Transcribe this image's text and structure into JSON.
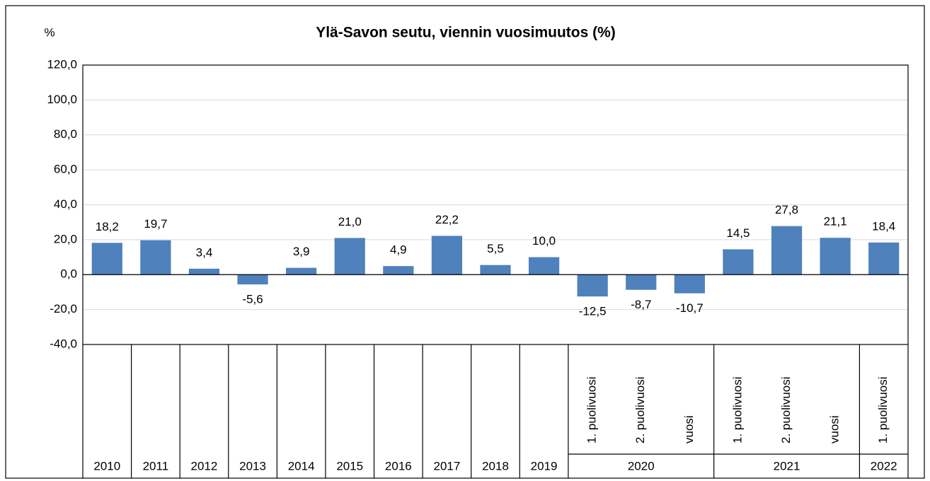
{
  "chart_data": {
    "type": "bar",
    "title": "Ylä-Savon seutu, viennin vuosimuutos (%)",
    "y_label": "%",
    "categories": [
      "2010",
      "2011",
      "2012",
      "2013",
      "2014",
      "2015",
      "2016",
      "2017",
      "2018",
      "2019",
      "1. puolivuosi",
      "2. puolivuosi",
      "vuosi",
      "1. puolivuosi",
      "2. puolivuosi",
      "vuosi",
      "1. puolivuosi"
    ],
    "category_groups": [
      {
        "label": "2020",
        "size": 3
      },
      {
        "label": "2021",
        "size": 3
      },
      {
        "label": "2022",
        "size": 1
      }
    ],
    "values": [
      18.2,
      19.7,
      3.4,
      -5.6,
      3.9,
      21.0,
      4.9,
      22.2,
      5.5,
      10.0,
      -12.5,
      -8.7,
      -10.7,
      14.5,
      27.8,
      21.1,
      18.4
    ],
    "value_labels": [
      "18,2",
      "19,7",
      "3,4",
      "-5,6",
      "3,9",
      "21,0",
      "4,9",
      "22,2",
      "5,5",
      "10,0",
      "-12,5",
      "-8,7",
      "-10,7",
      "14,5",
      "27,8",
      "21,1",
      "18,4"
    ],
    "color": "#4f81bd",
    "ylim": [
      -40,
      120
    ],
    "yticks": [
      {
        "value": -40,
        "label": "-40,0"
      },
      {
        "value": -20,
        "label": "-20,0"
      },
      {
        "value": 0,
        "label": "0,0"
      },
      {
        "value": 20,
        "label": "20,0"
      },
      {
        "value": 40,
        "label": "40,0"
      },
      {
        "value": 60,
        "label": "60,0"
      },
      {
        "value": 80,
        "label": "80,0"
      },
      {
        "value": 100,
        "label": "100,0"
      },
      {
        "value": 120,
        "label": "120,0"
      }
    ],
    "grid": true
  }
}
